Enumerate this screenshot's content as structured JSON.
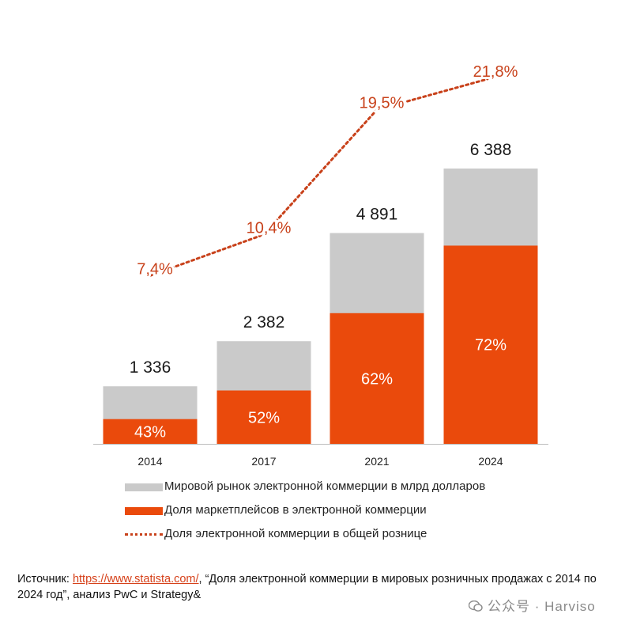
{
  "chart_data": {
    "type": "bar",
    "categories": [
      "2014",
      "2017",
      "2021",
      "2024"
    ],
    "series": [
      {
        "name": "Мировой рынок электронной коммерции в млрд долларов",
        "values": [
          1336,
          2382,
          4891,
          6388
        ],
        "labels": [
          "1 336",
          "2 382",
          "4 891",
          "6 388"
        ],
        "color": "#cacaca"
      },
      {
        "name": "Доля маркетплейсов в электронной коммерции",
        "values": [
          43,
          52,
          62,
          72
        ],
        "labels": [
          "43%",
          "52%",
          "62%",
          "72%"
        ],
        "color": "#ea4a0c",
        "unit": "%"
      },
      {
        "name": "Доля электронной коммерции в общей рознице",
        "values": [
          7.4,
          10.4,
          19.5,
          21.8
        ],
        "labels": [
          "7,4%",
          "10,4%",
          "19,5%",
          "21,8%"
        ],
        "color": "#c8411a",
        "unit": "%",
        "style": "dotted"
      }
    ],
    "ylim": [
      0,
      6388
    ],
    "grid": false,
    "legend_position": "bottom"
  },
  "legend": [
    {
      "label": "Мировой рынок электронной коммерции в млрд долларов",
      "color": "#cacaca",
      "kind": "box"
    },
    {
      "label": "Доля маркетплейсов в электронной коммерции",
      "color": "#ea4a0c",
      "kind": "box"
    },
    {
      "label": "Доля электронной коммерции в общей рознице",
      "color": "#c8411a",
      "kind": "dots"
    }
  ],
  "source": {
    "prefix": "Источник: ",
    "link": "https://www.statista.com/",
    "suffix": ", “Доля электронной коммерции в мировых розничных продажах с 2014 по 2024 год”, анализ PwC и Strategy&"
  },
  "watermark": "公众号 · Harviso"
}
